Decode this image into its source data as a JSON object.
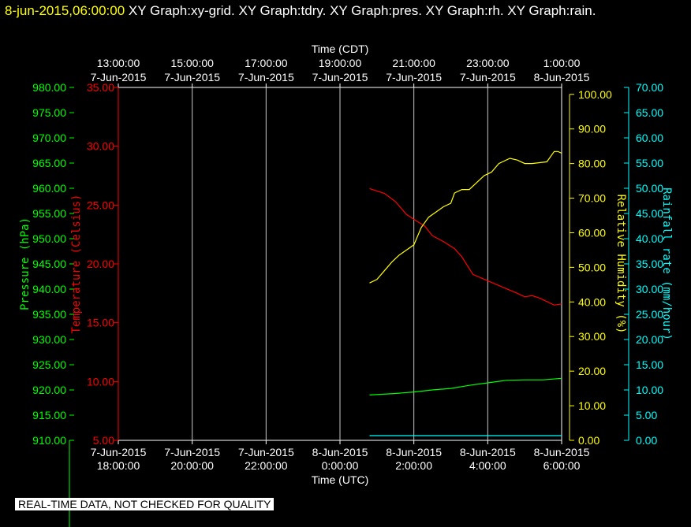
{
  "header": {
    "datetime": "8-jun-2015,06:00:00",
    "titles": [
      "XY Graph:xy-grid.",
      "XY Graph:tdry.",
      "XY Graph:pres.",
      "XY Graph:rh.",
      "XY Graph:rain."
    ]
  },
  "footer": {
    "notice": "REAL-TIME DATA, NOT CHECKED FOR QUALITY"
  },
  "colors": {
    "background": "#000000",
    "frame": "#ffffff",
    "grid": "#c8c8c8",
    "pressure": "#00ff00",
    "temperature": "#ff0000",
    "humidity": "#ffff00",
    "rainfall": "#00ffff"
  },
  "chart_data": {
    "type": "line",
    "grid": true,
    "x_bottom": {
      "label": "Time (UTC)",
      "range_hours": [
        -12,
        0
      ],
      "ticks": [
        {
          "h": -12,
          "date": "7-Jun-2015",
          "time": "18:00:00"
        },
        {
          "h": -10,
          "date": "7-Jun-2015",
          "time": "20:00:00"
        },
        {
          "h": -8,
          "date": "7-Jun-2015",
          "time": "22:00:00"
        },
        {
          "h": -6,
          "date": "8-Jun-2015",
          "time": "0:00:00"
        },
        {
          "h": -4,
          "date": "8-Jun-2015",
          "time": "2:00:00"
        },
        {
          "h": -2,
          "date": "8-Jun-2015",
          "time": "4:00:00"
        },
        {
          "h": 0,
          "date": "8-Jun-2015",
          "time": "6:00:00"
        }
      ]
    },
    "x_top": {
      "label": "Time (CDT)",
      "ticks": [
        {
          "h": -12,
          "time": "13:00:00",
          "date": "7-Jun-2015"
        },
        {
          "h": -10,
          "time": "15:00:00",
          "date": "7-Jun-2015"
        },
        {
          "h": -8,
          "time": "17:00:00",
          "date": "7-Jun-2015"
        },
        {
          "h": -6,
          "time": "19:00:00",
          "date": "7-Jun-2015"
        },
        {
          "h": -4,
          "time": "21:00:00",
          "date": "7-Jun-2015"
        },
        {
          "h": -2,
          "time": "23:00:00",
          "date": "7-Jun-2015"
        },
        {
          "h": 0,
          "time": "1:00:00",
          "date": "8-Jun-2015"
        }
      ]
    },
    "axes": {
      "pressure": {
        "label": "Pressure (hPa)",
        "range": [
          910,
          980
        ],
        "step": 5,
        "ticks": [
          "910.00",
          "915.00",
          "920.00",
          "925.00",
          "930.00",
          "935.00",
          "940.00",
          "945.00",
          "950.00",
          "955.00",
          "960.00",
          "965.00",
          "970.00",
          "975.00",
          "980.00"
        ]
      },
      "temperature": {
        "label": "Temperature (Celsius)",
        "range": [
          5,
          35
        ],
        "step": 5,
        "ticks": [
          "5.00",
          "10.00",
          "15.00",
          "20.00",
          "25.00",
          "30.00",
          "35.00"
        ]
      },
      "humidity": {
        "label": "Relative Humidity (%)",
        "range": [
          0,
          102
        ],
        "step": 10,
        "ticks": [
          "0.00",
          "10.00",
          "20.00",
          "30.00",
          "40.00",
          "50.00",
          "60.00",
          "70.00",
          "80.00",
          "90.00",
          "100.00"
        ]
      },
      "rainfall": {
        "label": "Rainfall rate (mm/hour)",
        "range": [
          0,
          70
        ],
        "step": 5,
        "ticks": [
          "0.00",
          "5.00",
          "10.00",
          "15.00",
          "20.00",
          "25.00",
          "30.00",
          "35.00",
          "40.00",
          "45.00",
          "50.00",
          "55.00",
          "60.00",
          "65.00",
          "70.00"
        ]
      }
    },
    "series": [
      {
        "name": "tdry",
        "axis": "temperature",
        "x": [
          -5.2,
          -4.8,
          -4.5,
          -4.2,
          -3.9,
          -3.7,
          -3.5,
          -3.2,
          -2.9,
          -2.7,
          -2.4,
          -2.1,
          -1.8,
          -1.5,
          -1.2,
          -1.0,
          -0.8,
          -0.6,
          -0.4,
          -0.2,
          0.0
        ],
        "y": [
          26.4,
          26.0,
          25.3,
          24.2,
          23.6,
          23.2,
          22.4,
          21.9,
          21.3,
          20.6,
          19.1,
          18.7,
          18.3,
          17.9,
          17.5,
          17.2,
          17.3,
          17.1,
          16.8,
          16.5,
          16.6
        ]
      },
      {
        "name": "pres",
        "axis": "pressure",
        "x": [
          -5.2,
          -4.5,
          -4.0,
          -3.5,
          -3.0,
          -2.5,
          -2.0,
          -1.5,
          -1.0,
          -0.5,
          0.0
        ],
        "y": [
          919.0,
          919.3,
          919.6,
          920.0,
          920.3,
          920.9,
          921.4,
          921.9,
          922.0,
          922.0,
          922.3
        ]
      },
      {
        "name": "rh",
        "axis": "humidity",
        "x": [
          -5.2,
          -5.0,
          -4.8,
          -4.6,
          -4.4,
          -4.2,
          -4.0,
          -3.8,
          -3.6,
          -3.4,
          -3.2,
          -3.0,
          -2.9,
          -2.7,
          -2.5,
          -2.3,
          -2.1,
          -1.9,
          -1.7,
          -1.4,
          -1.2,
          -1.0,
          -0.8,
          -0.4,
          -0.2,
          -0.1,
          0.0
        ],
        "y": [
          45.5,
          46.5,
          49.0,
          51.5,
          53.5,
          55.0,
          56.5,
          61.5,
          64.5,
          66.0,
          67.5,
          68.5,
          71.5,
          72.5,
          72.5,
          74.5,
          76.5,
          77.5,
          80.0,
          81.5,
          81.0,
          80.0,
          80.0,
          80.5,
          83.5,
          83.5,
          83.0
        ]
      },
      {
        "name": "rain",
        "axis": "rainfall",
        "x": [
          -5.2,
          0.0
        ],
        "y": [
          0.0,
          0.0
        ]
      }
    ]
  }
}
